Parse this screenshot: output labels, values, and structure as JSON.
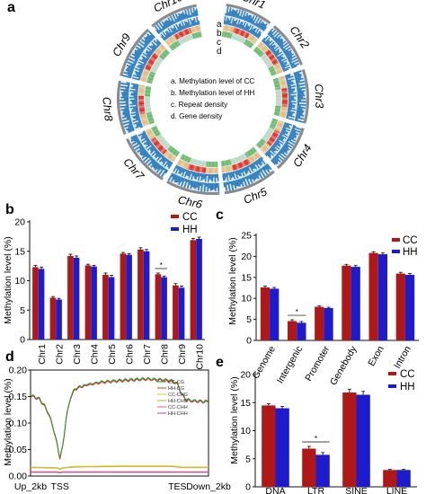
{
  "colors": {
    "cc": "#b01818",
    "hh": "#1c1ccc",
    "axis": "#111111"
  },
  "panel_labels": [
    "a",
    "b",
    "c",
    "d",
    "e"
  ],
  "chart_data": [
    {
      "id": "a",
      "type": "circos",
      "chromosomes": [
        "Chr1",
        "Chr2",
        "Chr3",
        "Chr4",
        "Chr5",
        "Chr6",
        "Chr7",
        "Chr8",
        "Chr9",
        "Chr10"
      ],
      "track_letters": [
        "a",
        "b",
        "c",
        "d"
      ],
      "legend": [
        "a. Methylation level of CC",
        "b. Methylation level of HH",
        "c. Repeat density",
        "d. Gene density"
      ],
      "track_colors": [
        "#2e7fc0",
        "#2e7fc0",
        "#e8401a",
        "#3aaa3a"
      ]
    },
    {
      "id": "b",
      "type": "bar",
      "ylabel": "Methylation level (%)",
      "ylim": [
        0,
        20
      ],
      "yticks": [
        0,
        5,
        10,
        15,
        20
      ],
      "categories": [
        "Chr1",
        "Chr2",
        "Chr3",
        "Chr4",
        "Chr5",
        "Chr6",
        "Chr7",
        "Chr8",
        "Chr9",
        "Chr10"
      ],
      "series": [
        {
          "name": "CC",
          "values": [
            12.3,
            7.1,
            14.2,
            12.6,
            11.0,
            14.6,
            15.3,
            11.1,
            9.2,
            16.9
          ]
        },
        {
          "name": "HH",
          "values": [
            12.0,
            6.8,
            13.9,
            12.4,
            10.6,
            14.4,
            15.0,
            10.6,
            8.8,
            17.1
          ]
        }
      ],
      "errors": [
        0.3,
        0.2,
        0.3,
        0.2,
        0.3,
        0.2,
        0.3,
        0.2,
        0.3,
        0.3
      ],
      "significance": [
        {
          "index": 7,
          "label": "*"
        }
      ]
    },
    {
      "id": "c",
      "type": "bar",
      "ylabel": "Methylation level (%)",
      "ylim": [
        0,
        25
      ],
      "yticks": [
        0,
        5,
        10,
        15,
        20,
        25
      ],
      "categories": [
        "Genome",
        "Intergenic",
        "Promoter",
        "Genebody",
        "Exon",
        "Intron"
      ],
      "series": [
        {
          "name": "CC",
          "values": [
            12.6,
            4.6,
            8.0,
            17.8,
            20.8,
            15.9
          ]
        },
        {
          "name": "HH",
          "values": [
            12.3,
            4.2,
            7.7,
            17.5,
            20.5,
            15.6
          ]
        }
      ],
      "errors": [
        0.3,
        0.3,
        0.2,
        0.3,
        0.3,
        0.3
      ],
      "significance": [
        {
          "index": 1,
          "label": "*"
        }
      ]
    },
    {
      "id": "d",
      "type": "line",
      "ylabel": "Methylation level (%)",
      "ylim": [
        0,
        0.2
      ],
      "yticks": [
        "0.00",
        "0.05",
        "0.10",
        "0.15",
        "0.20"
      ],
      "xticks": [
        "Up_2kb",
        "TSS",
        "TES",
        "Down_2kb"
      ],
      "legend": [
        "CC-CG",
        "HH-CG",
        "CC-CHG",
        "HH-CHG",
        "CC-CHH",
        "HH-CHH"
      ],
      "series": [
        {
          "name": "CC-CG",
          "color": "#2e8b2e",
          "points": [
            [
              0,
              0.152
            ],
            [
              0.05,
              0.15
            ],
            [
              0.1,
              0.146
            ],
            [
              0.15,
              0.135
            ],
            [
              0.2,
              0.12
            ],
            [
              0.25,
              0.095
            ],
            [
              0.3,
              0.06
            ],
            [
              0.33,
              0.035
            ],
            [
              0.36,
              0.055
            ],
            [
              0.4,
              0.11
            ],
            [
              0.45,
              0.15
            ],
            [
              0.5,
              0.165
            ],
            [
              0.6,
              0.172
            ],
            [
              0.8,
              0.178
            ],
            [
              1.0,
              0.181
            ],
            [
              1.1,
              0.182
            ],
            [
              1.2,
              0.183
            ],
            [
              1.3,
              0.184
            ],
            [
              1.4,
              0.183
            ],
            [
              1.5,
              0.182
            ],
            [
              1.6,
              0.18
            ],
            [
              1.65,
              0.175
            ],
            [
              1.7,
              0.155
            ],
            [
              1.75,
              0.145
            ],
            [
              1.8,
              0.143
            ],
            [
              1.9,
              0.142
            ],
            [
              2.0,
              0.141
            ]
          ]
        },
        {
          "name": "HH-CG",
          "color": "#d23a2e",
          "points": [
            [
              0,
              0.15
            ],
            [
              0.05,
              0.148
            ],
            [
              0.1,
              0.144
            ],
            [
              0.15,
              0.133
            ],
            [
              0.2,
              0.118
            ],
            [
              0.25,
              0.093
            ],
            [
              0.3,
              0.058
            ],
            [
              0.33,
              0.033
            ],
            [
              0.36,
              0.053
            ],
            [
              0.4,
              0.108
            ],
            [
              0.45,
              0.148
            ],
            [
              0.5,
              0.163
            ],
            [
              0.6,
              0.17
            ],
            [
              0.8,
              0.176
            ],
            [
              1.0,
              0.179
            ],
            [
              1.1,
              0.18
            ],
            [
              1.2,
              0.181
            ],
            [
              1.3,
              0.182
            ],
            [
              1.4,
              0.181
            ],
            [
              1.5,
              0.18
            ],
            [
              1.6,
              0.178
            ],
            [
              1.65,
              0.173
            ],
            [
              1.7,
              0.153
            ],
            [
              1.75,
              0.143
            ],
            [
              1.8,
              0.141
            ],
            [
              1.9,
              0.14
            ],
            [
              2.0,
              0.139
            ]
          ]
        },
        {
          "name": "CC-CHG",
          "color": "#e0c02a",
          "points": [
            [
              0,
              0.017
            ],
            [
              0.3,
              0.016
            ],
            [
              0.33,
              0.013
            ],
            [
              0.36,
              0.016
            ],
            [
              0.5,
              0.018
            ],
            [
              1.0,
              0.019
            ],
            [
              1.6,
              0.019
            ],
            [
              1.7,
              0.017
            ],
            [
              2.0,
              0.017
            ]
          ]
        },
        {
          "name": "HH-CHG",
          "color": "#b0b020",
          "points": [
            [
              0,
              0.016
            ],
            [
              0.3,
              0.015
            ],
            [
              0.33,
              0.012
            ],
            [
              0.36,
              0.015
            ],
            [
              0.5,
              0.017
            ],
            [
              1.0,
              0.018
            ],
            [
              1.6,
              0.018
            ],
            [
              1.7,
              0.016
            ],
            [
              2.0,
              0.016
            ]
          ]
        },
        {
          "name": "CC-CHH",
          "color": "#e85a8a",
          "points": [
            [
              0,
              0.008
            ],
            [
              0.3,
              0.008
            ],
            [
              0.33,
              0.007
            ],
            [
              0.36,
              0.008
            ],
            [
              1.0,
              0.008
            ],
            [
              2.0,
              0.008
            ]
          ]
        },
        {
          "name": "HH-CHH",
          "color": "#9a4ad0",
          "points": [
            [
              0,
              0.007
            ],
            [
              0.3,
              0.007
            ],
            [
              0.33,
              0.006
            ],
            [
              0.36,
              0.007
            ],
            [
              1.0,
              0.007
            ],
            [
              2.0,
              0.007
            ]
          ]
        }
      ]
    },
    {
      "id": "e",
      "type": "bar",
      "ylabel": "Methylation level (%)",
      "ylim": [
        0,
        20
      ],
      "yticks": [
        0,
        5,
        10,
        15,
        20
      ],
      "categories": [
        "DNA",
        "LTR",
        "SINE",
        "LINE"
      ],
      "series": [
        {
          "name": "CC",
          "values": [
            14.5,
            6.8,
            16.8,
            3.0
          ]
        },
        {
          "name": "HH",
          "values": [
            14.0,
            5.7,
            16.4,
            3.0
          ]
        }
      ],
      "errors": [
        0.3,
        0.4,
        0.6,
        0.1
      ],
      "significance": [
        {
          "index": 1,
          "label": "*"
        }
      ]
    }
  ]
}
